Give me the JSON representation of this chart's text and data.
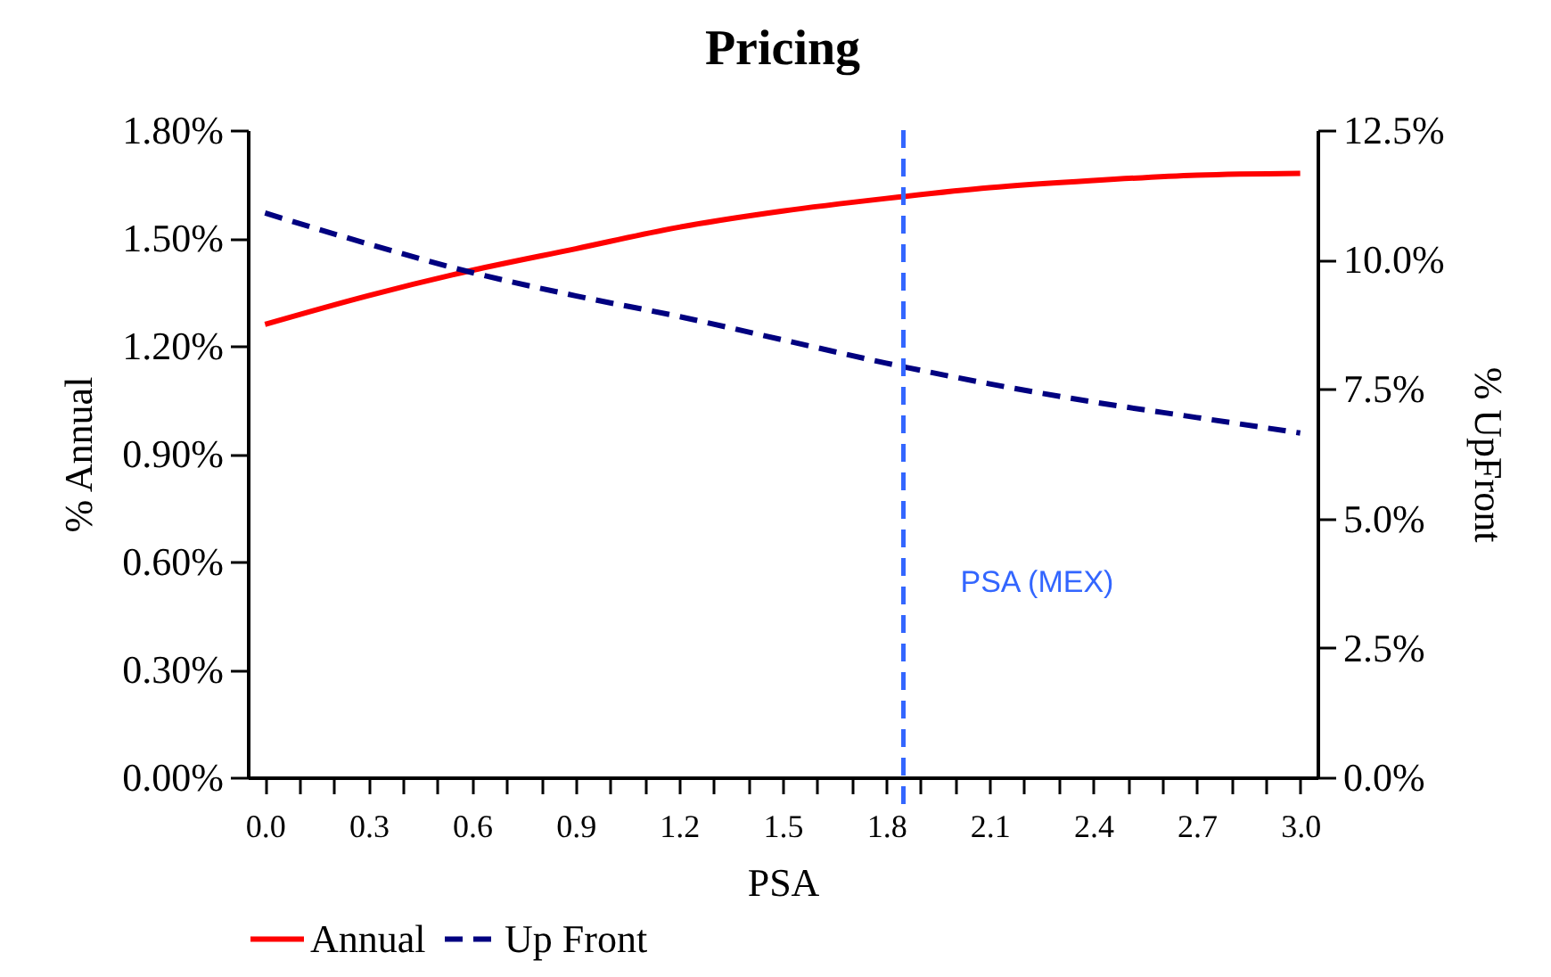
{
  "chart_data": {
    "type": "line",
    "title": "Pricing",
    "xlabel": "PSA",
    "ylabel": "% Annual",
    "y2label": "% UpFront",
    "x": [
      0.0,
      0.3,
      0.6,
      0.9,
      1.2,
      1.5,
      1.8,
      2.1,
      2.4,
      2.7,
      3.0
    ],
    "series": [
      {
        "name": "Annual",
        "color": "#ff0000",
        "line_style": "solid",
        "values": [
          1.26,
          1.34,
          1.41,
          1.47,
          1.53,
          1.575,
          1.61,
          1.64,
          1.66,
          1.675,
          1.68
        ]
      },
      {
        "name": "Up Front",
        "color": "#000080",
        "line_style": "dashed",
        "axis": "y2",
        "values": [
          10.9,
          10.3,
          9.75,
          9.3,
          8.9,
          8.45,
          8.0,
          7.6,
          7.25,
          6.95,
          6.65
        ]
      }
    ],
    "xlim": [
      -0.05,
      3.05
    ],
    "xticks": [
      {
        "value": 0.0,
        "label": "0.0"
      },
      {
        "value": 0.1,
        "label": null
      },
      {
        "value": 0.2,
        "label": null
      },
      {
        "value": 0.3,
        "label": "0.3"
      },
      {
        "value": 0.4,
        "label": null
      },
      {
        "value": 0.5,
        "label": null
      },
      {
        "value": 0.6,
        "label": "0.6"
      },
      {
        "value": 0.7,
        "label": null
      },
      {
        "value": 0.8,
        "label": null
      },
      {
        "value": 0.9,
        "label": "0.9"
      },
      {
        "value": 1.0,
        "label": null
      },
      {
        "value": 1.1,
        "label": null
      },
      {
        "value": 1.2,
        "label": "1.2"
      },
      {
        "value": 1.3,
        "label": null
      },
      {
        "value": 1.4,
        "label": null
      },
      {
        "value": 1.5,
        "label": "1.5"
      },
      {
        "value": 1.6,
        "label": null
      },
      {
        "value": 1.7,
        "label": null
      },
      {
        "value": 1.8,
        "label": "1.8"
      },
      {
        "value": 1.9,
        "label": null
      },
      {
        "value": 2.0,
        "label": null
      },
      {
        "value": 2.1,
        "label": "2.1"
      },
      {
        "value": 2.2,
        "label": null
      },
      {
        "value": 2.3,
        "label": null
      },
      {
        "value": 2.4,
        "label": "2.4"
      },
      {
        "value": 2.5,
        "label": null
      },
      {
        "value": 2.6,
        "label": null
      },
      {
        "value": 2.7,
        "label": "2.7"
      },
      {
        "value": 2.8,
        "label": null
      },
      {
        "value": 2.9,
        "label": null
      },
      {
        "value": 3.0,
        "label": "3.0"
      }
    ],
    "ylim": [
      0,
      1.8
    ],
    "yticks": [
      {
        "value": 0,
        "label": "0.00%"
      },
      {
        "value": 0.3,
        "label": "0.30%"
      },
      {
        "value": 0.6,
        "label": "0.60%"
      },
      {
        "value": 0.9,
        "label": "0.90%"
      },
      {
        "value": 1.2,
        "label": "1.20%"
      },
      {
        "value": 1.5,
        "label": "1.50%"
      },
      {
        "value": 1.8,
        "label": "1.80%"
      }
    ],
    "y2lim": [
      0,
      12.5
    ],
    "y2ticks": [
      {
        "value": 0,
        "label": "0.0%"
      },
      {
        "value": 2.5,
        "label": "2.5%"
      },
      {
        "value": 5,
        "label": "5.0%"
      },
      {
        "value": 7.5,
        "label": "7.5%"
      },
      {
        "value": 10,
        "label": "10.0%"
      },
      {
        "value": 12.5,
        "label": "12.5%"
      }
    ],
    "ref_lines": [
      {
        "axis": "x",
        "value": 1.85,
        "label": "PSA (MEX)",
        "color": "#3366ff",
        "line_style": "dashed"
      }
    ],
    "grid": false,
    "legend": "bottom",
    "marker": "none"
  }
}
